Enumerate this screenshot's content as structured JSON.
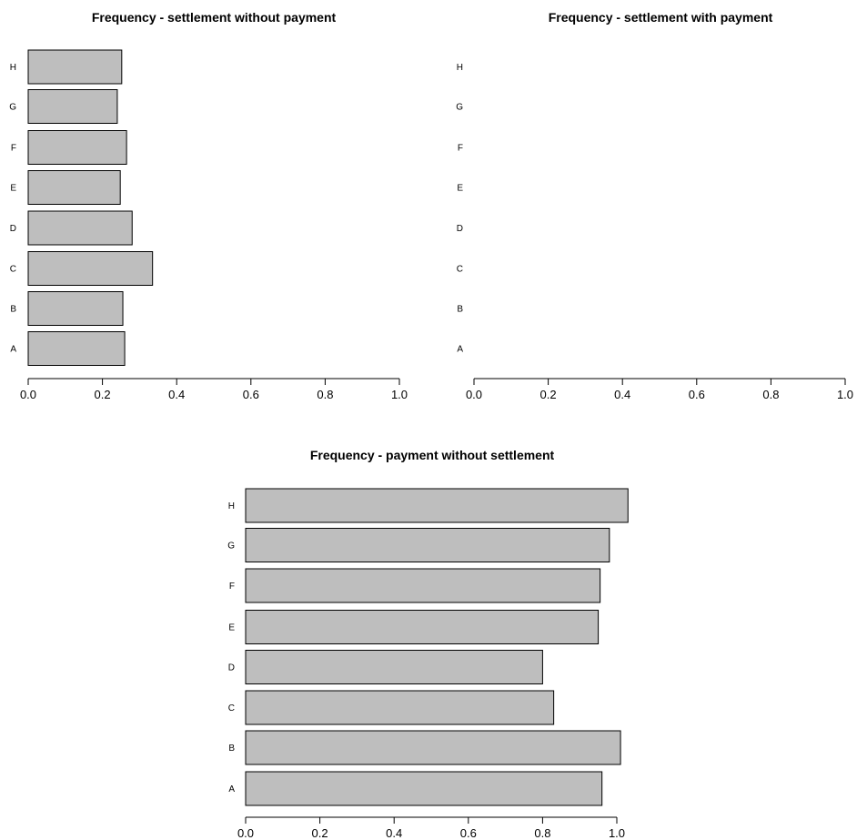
{
  "chart_data": [
    {
      "type": "bar",
      "orientation": "horizontal",
      "title": "Frequency - settlement without payment",
      "categories": [
        "A",
        "B",
        "C",
        "D",
        "E",
        "F",
        "G",
        "H"
      ],
      "values": [
        0.26,
        0.255,
        0.335,
        0.28,
        0.248,
        0.265,
        0.24,
        0.252
      ],
      "xlim": [
        0,
        1
      ],
      "xticks": [
        "0.0",
        "0.2",
        "0.4",
        "0.6",
        "0.8",
        "1.0"
      ],
      "grid": false,
      "bar_color": "#bebebe"
    },
    {
      "type": "bar",
      "orientation": "horizontal",
      "title": "Frequency - settlement with payment",
      "categories": [
        "A",
        "B",
        "C",
        "D",
        "E",
        "F",
        "G",
        "H"
      ],
      "values": [
        0,
        0,
        0,
        0,
        0,
        0,
        0,
        0
      ],
      "xlim": [
        0,
        1
      ],
      "xticks": [
        "0.0",
        "0.2",
        "0.4",
        "0.6",
        "0.8",
        "1.0"
      ],
      "grid": false,
      "bar_color": "#bebebe"
    },
    {
      "type": "bar",
      "orientation": "horizontal",
      "title": "Frequency - payment without settlement",
      "categories": [
        "A",
        "B",
        "C",
        "D",
        "E",
        "F",
        "G",
        "H"
      ],
      "values": [
        0.96,
        1.01,
        0.83,
        0.8,
        0.95,
        0.955,
        0.98,
        1.03
      ],
      "xlim": [
        0,
        1
      ],
      "xticks": [
        "0.0",
        "0.2",
        "0.4",
        "0.6",
        "0.8",
        "1.0"
      ],
      "grid": false,
      "bar_color": "#bebebe"
    }
  ]
}
